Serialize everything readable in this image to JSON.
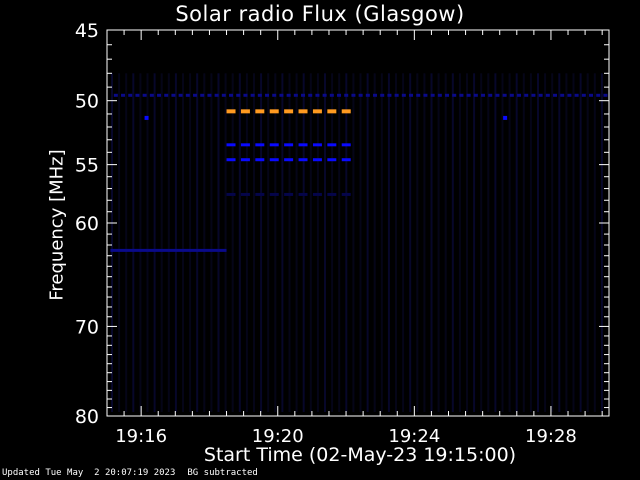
{
  "chart_data": {
    "type": "heatmap",
    "title": "Solar radio Flux (Glasgow)",
    "xlabel": "Start Time (02-May-23 19:15:00)",
    "ylabel": "Frequency [MHz]",
    "x_ticks": [
      "19:16",
      "19:20",
      "19:24",
      "19:28"
    ],
    "x_tick_minutes": [
      1,
      5,
      9,
      13
    ],
    "xlim_minutes": [
      0,
      14.7
    ],
    "y_ticks": [
      45,
      50,
      55,
      60,
      70,
      80
    ],
    "ylim": [
      45,
      80
    ],
    "y_scale": "log",
    "grid": false,
    "colors": {
      "background": "#000000",
      "axes": "#ffffff",
      "strong": "#ff9a20",
      "medium": "#0a0aff",
      "weak": "#0a0a8a",
      "faint": "#05054a"
    },
    "features": [
      {
        "name": "band-49.6",
        "freq": 49.6,
        "x_start": 0.2,
        "x_end": 14.6,
        "intensity": "weak",
        "dashed": true
      },
      {
        "name": "band-50.8",
        "freq": 50.8,
        "x_start": 3.5,
        "x_end": 7.2,
        "intensity": "strong",
        "dashed": true
      },
      {
        "name": "band-53.4",
        "freq": 53.4,
        "x_start": 3.5,
        "x_end": 7.2,
        "intensity": "medium",
        "dashed": true
      },
      {
        "name": "band-54.6",
        "freq": 54.6,
        "x_start": 3.5,
        "x_end": 7.2,
        "intensity": "medium",
        "dashed": true
      },
      {
        "name": "band-57.5",
        "freq": 57.5,
        "x_start": 3.5,
        "x_end": 7.2,
        "intensity": "faint",
        "dashed": true
      },
      {
        "name": "band-62.5",
        "freq": 62.5,
        "x_start": 0.1,
        "x_end": 3.5,
        "intensity": "weak",
        "dashed": false
      }
    ]
  },
  "footer": {
    "updated": "Updated Tue May  2 20:07:19 2023",
    "note": "BG subtracted"
  }
}
